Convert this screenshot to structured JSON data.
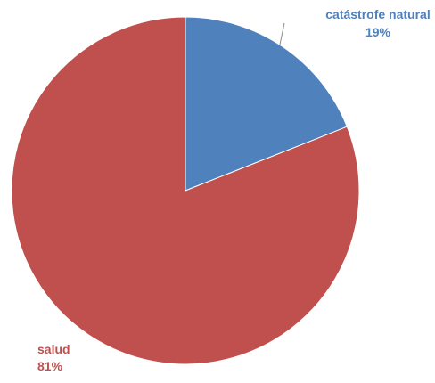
{
  "chart_data": {
    "type": "pie",
    "title": "",
    "slices": [
      {
        "label": "catástrofe natural",
        "value": 19,
        "percent_label": "19%",
        "color": "#4f81bd"
      },
      {
        "label": "salud",
        "value": 81,
        "percent_label": "81%",
        "color": "#c0504d"
      }
    ],
    "legend": "none",
    "data_labels": "outside, with leader line for small slice"
  }
}
